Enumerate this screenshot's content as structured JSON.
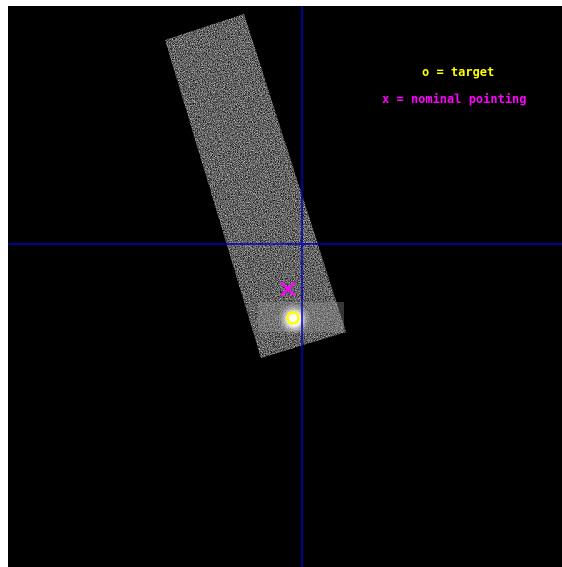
{
  "legend": {
    "target_label": "o = target",
    "pointing_label": "x = nominal pointing",
    "target_color": "#ffff00",
    "pointing_color": "#ff00ff"
  },
  "markers": {
    "target_symbol": "o",
    "pointing_symbol": "x"
  },
  "colors": {
    "background": "#000000",
    "crosshair": "#0000cc",
    "event_noise": "#bdbdbd",
    "source_glow": "#ffffff"
  }
}
